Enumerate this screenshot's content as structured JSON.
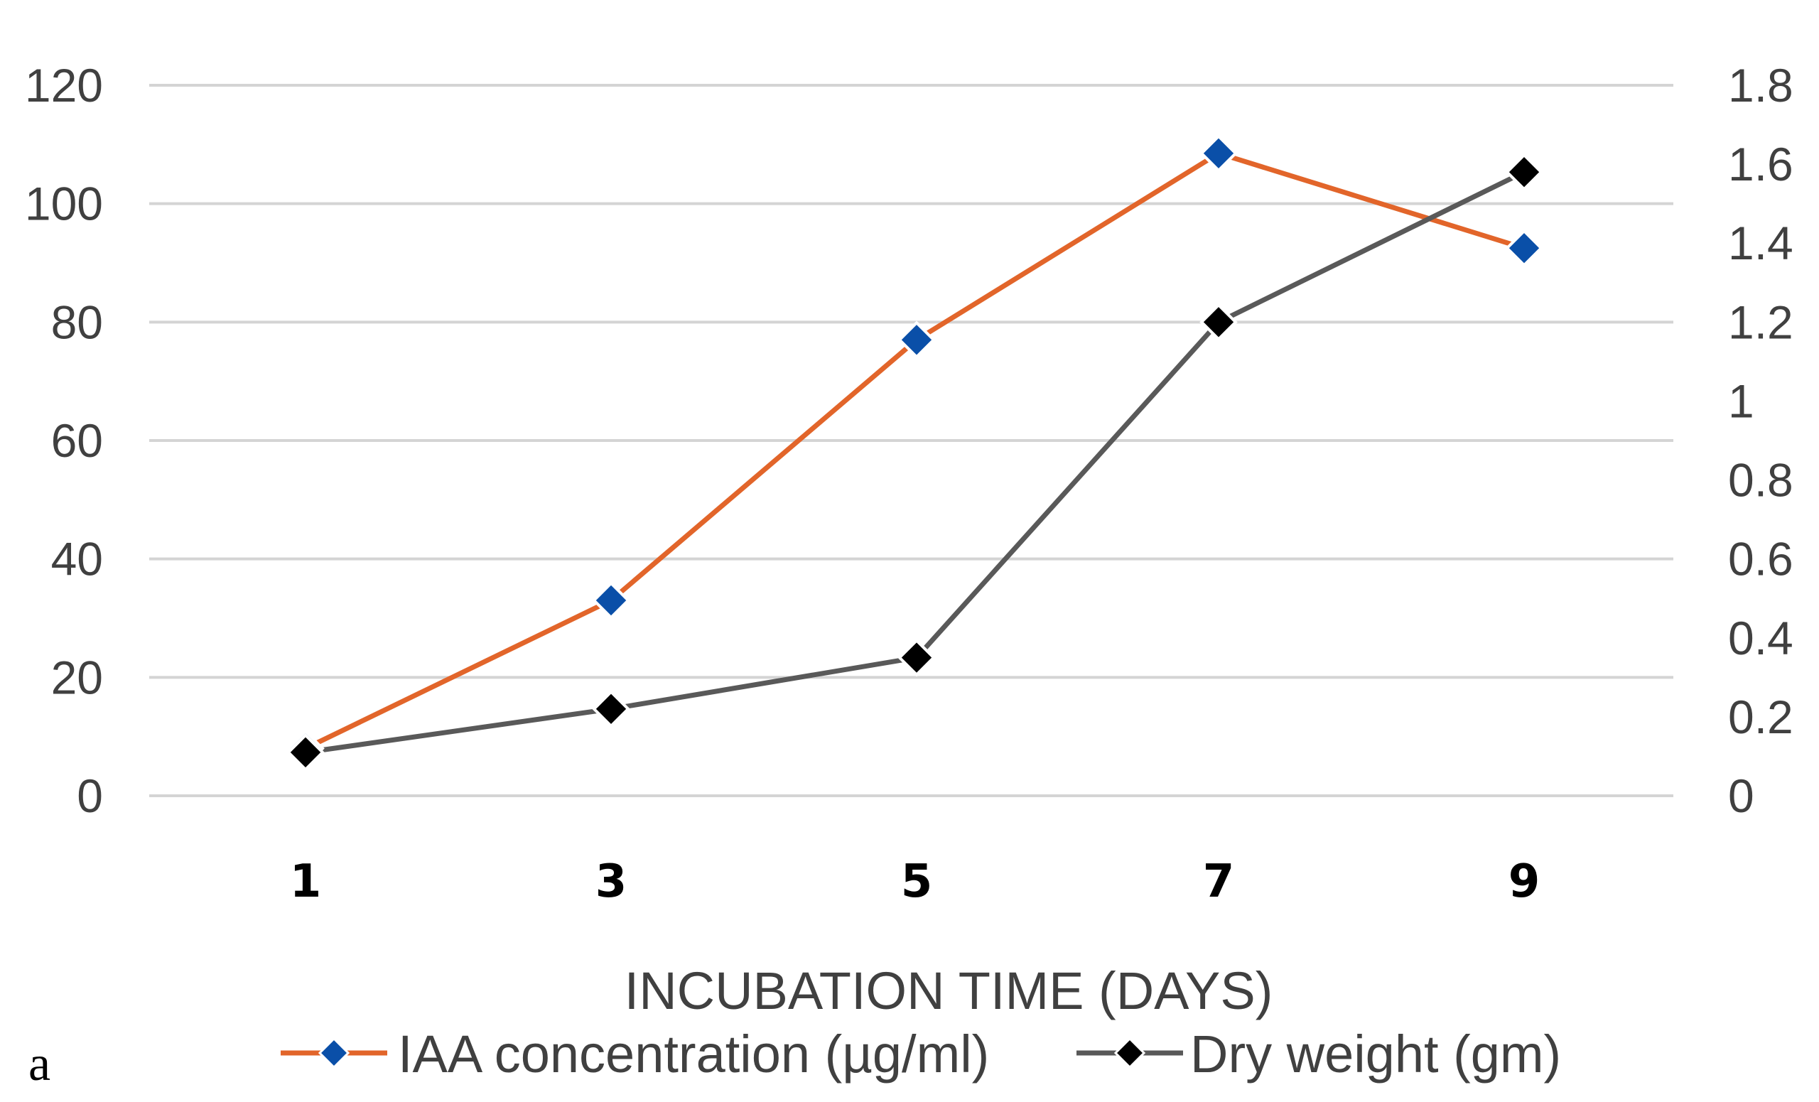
{
  "chart_data": {
    "type": "line",
    "panel_label": "a",
    "xlabel": "INCUBATION TIME (DAYS)",
    "categories": [
      "1",
      "3",
      "5",
      "7",
      "9"
    ],
    "y_left": {
      "range": [
        0,
        120
      ],
      "ticks": [
        "0",
        "20",
        "40",
        "60",
        "80",
        "100",
        "120"
      ]
    },
    "y_right": {
      "range": [
        0,
        1.8
      ],
      "ticks": [
        "0",
        "0.2",
        "0.4",
        "0.6",
        "0.8",
        "1",
        "1.2",
        "1.4",
        "1.6",
        "1.8"
      ]
    },
    "grid": true,
    "legend_position": "bottom",
    "series": [
      {
        "name": "IAA concentration (µg/ml)",
        "axis": "left",
        "values": [
          8,
          33,
          77,
          108.5,
          92.5
        ],
        "line_color": "#E2652A",
        "marker_color": "#0A4FA8",
        "marker": "diamond"
      },
      {
        "name": "Dry weight (gm)",
        "axis": "right",
        "values": [
          0.11,
          0.22,
          0.35,
          1.2,
          1.58
        ],
        "line_color": "#595959",
        "marker_color": "#000000",
        "marker": "diamond"
      }
    ]
  }
}
